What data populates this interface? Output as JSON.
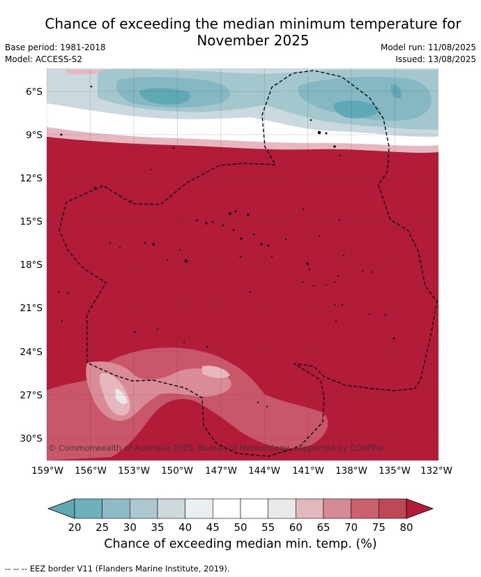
{
  "header": {
    "title": "Chance of exceeding the median minimum temperature for\nNovember 2025",
    "base_period": "Base period: 1981-2018",
    "model": "Model: ACCESS-S2",
    "model_run": "Model run: 11/08/2025",
    "issued": "Issued: 13/08/2025"
  },
  "map": {
    "lat_ticks": [
      "6°S",
      "9°S",
      "12°S",
      "15°S",
      "18°S",
      "21°S",
      "24°S",
      "27°S",
      "30°S"
    ],
    "lon_ticks": [
      "159°W",
      "156°W",
      "153°W",
      "150°W",
      "147°W",
      "144°W",
      "141°W",
      "138°W",
      "135°W",
      "132°W"
    ],
    "copyright": "© Commonwealth of Australia 2025, Bureau of Meteorology, supported by COSPPac",
    "colors": {
      "high": "#b31c38",
      "mid_high": "#c9576a",
      "light_red": "#d98b97",
      "pale_red": "#e6b7be",
      "white": "#ffffff",
      "pale_blue": "#c9d9de",
      "light_blue": "#a4c6cd",
      "mid_blue": "#85b8c2",
      "teal": "#5fa9b5"
    }
  },
  "colorbar": {
    "ticks": [
      "20",
      "25",
      "30",
      "35",
      "40",
      "45",
      "50",
      "55",
      "60",
      "65",
      "70",
      "75",
      "80"
    ],
    "colors": [
      "#5fa9b5",
      "#6eb0bc",
      "#8dbcc6",
      "#adc9cf",
      "#cdd9dd",
      "#e9eff1",
      "#ffffff",
      "#ffffff",
      "#eae9ea",
      "#e2b8be",
      "#d68a95",
      "#c9616f",
      "#bf4858",
      "#b31c38"
    ],
    "label": "Chance of exceeding median min. temp. (%)"
  },
  "footnote": "--  --  -- EEZ border V11 (Flanders Marine Institute, 2019)."
}
